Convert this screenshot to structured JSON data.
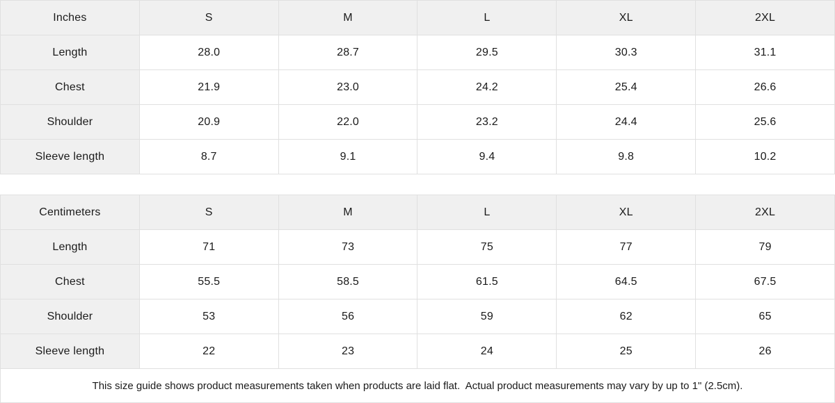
{
  "colors": {
    "header_background": "#f0f0f0",
    "cell_background": "#ffffff",
    "border": "#e0e0e0",
    "text": "#1a1a1a"
  },
  "tables": [
    {
      "unit_label": "Inches",
      "size_headers": [
        "S",
        "M",
        "L",
        "XL",
        "2XL"
      ],
      "rows": [
        {
          "label": "Length",
          "values": [
            "28.0",
            "28.7",
            "29.5",
            "30.3",
            "31.1"
          ]
        },
        {
          "label": "Chest",
          "values": [
            "21.9",
            "23.0",
            "24.2",
            "25.4",
            "26.6"
          ]
        },
        {
          "label": "Shoulder",
          "values": [
            "20.9",
            "22.0",
            "23.2",
            "24.4",
            "25.6"
          ]
        },
        {
          "label": "Sleeve length",
          "values": [
            "8.7",
            "9.1",
            "9.4",
            "9.8",
            "10.2"
          ]
        }
      ]
    },
    {
      "unit_label": "Centimeters",
      "size_headers": [
        "S",
        "M",
        "L",
        "XL",
        "2XL"
      ],
      "rows": [
        {
          "label": "Length",
          "values": [
            "71",
            "73",
            "75",
            "77",
            "79"
          ]
        },
        {
          "label": "Chest",
          "values": [
            "55.5",
            "58.5",
            "61.5",
            "64.5",
            "67.5"
          ]
        },
        {
          "label": "Shoulder",
          "values": [
            "53",
            "56",
            "59",
            "62",
            "65"
          ]
        },
        {
          "label": "Sleeve length",
          "values": [
            "22",
            "23",
            "24",
            "25",
            "26"
          ]
        }
      ]
    }
  ],
  "footer": {
    "note": "This size guide shows product measurements taken when products are laid flat.  Actual product measurements may vary by up to 1\" (2.5cm)."
  }
}
